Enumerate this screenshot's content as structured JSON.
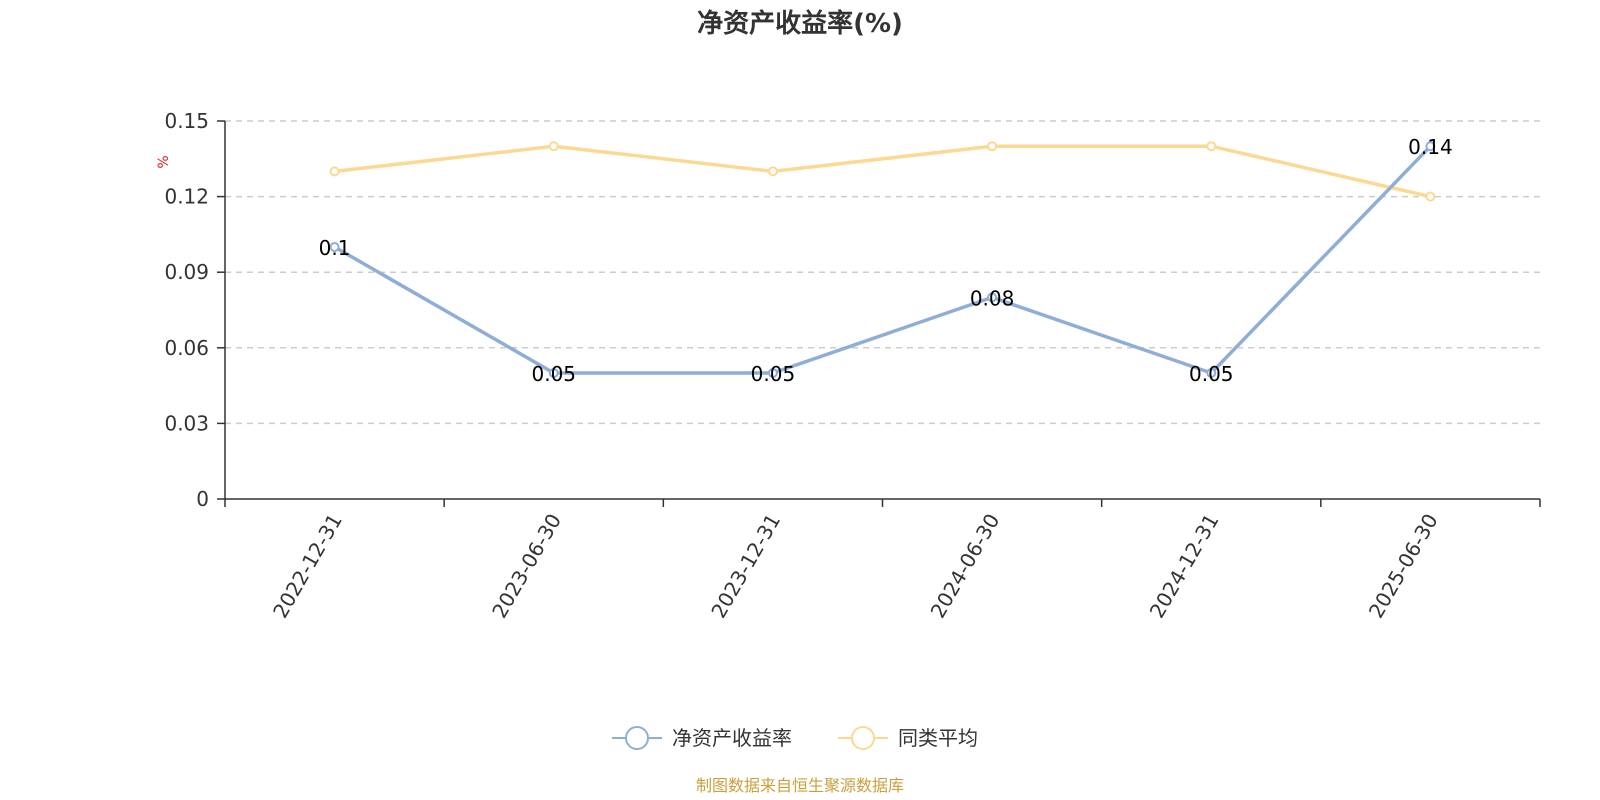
{
  "chart_data": {
    "type": "line",
    "title": "净资产收益率(%)",
    "ylabel": "%",
    "xlabel": "",
    "categories": [
      "2022-12-31",
      "2023-06-30",
      "2023-12-31",
      "2024-06-30",
      "2024-12-31",
      "2025-06-30"
    ],
    "ylim": [
      0,
      0.15
    ],
    "yticks": [
      "0",
      "0.03",
      "0.06",
      "0.09",
      "0.12",
      "0.15"
    ],
    "grid": true,
    "legend_position": "bottom",
    "series": [
      {
        "name": "净资产收益率",
        "values": [
          0.1,
          0.05,
          0.05,
          0.08,
          0.05,
          0.14
        ],
        "labels": [
          "0.1",
          "0.05",
          "0.05",
          "0.08",
          "0.05",
          "0.14"
        ],
        "color": "#8eaed8"
      },
      {
        "name": "同类平均",
        "values": [
          0.13,
          0.14,
          0.13,
          0.14,
          0.14,
          0.12
        ],
        "color": "#fcd992"
      }
    ]
  },
  "source_note": "制图数据来自恒生聚源数据库",
  "colors": {
    "ylabel": "#e0241c",
    "source": "#c9a03c",
    "axis": "#333333",
    "grid": "#cccccc"
  }
}
